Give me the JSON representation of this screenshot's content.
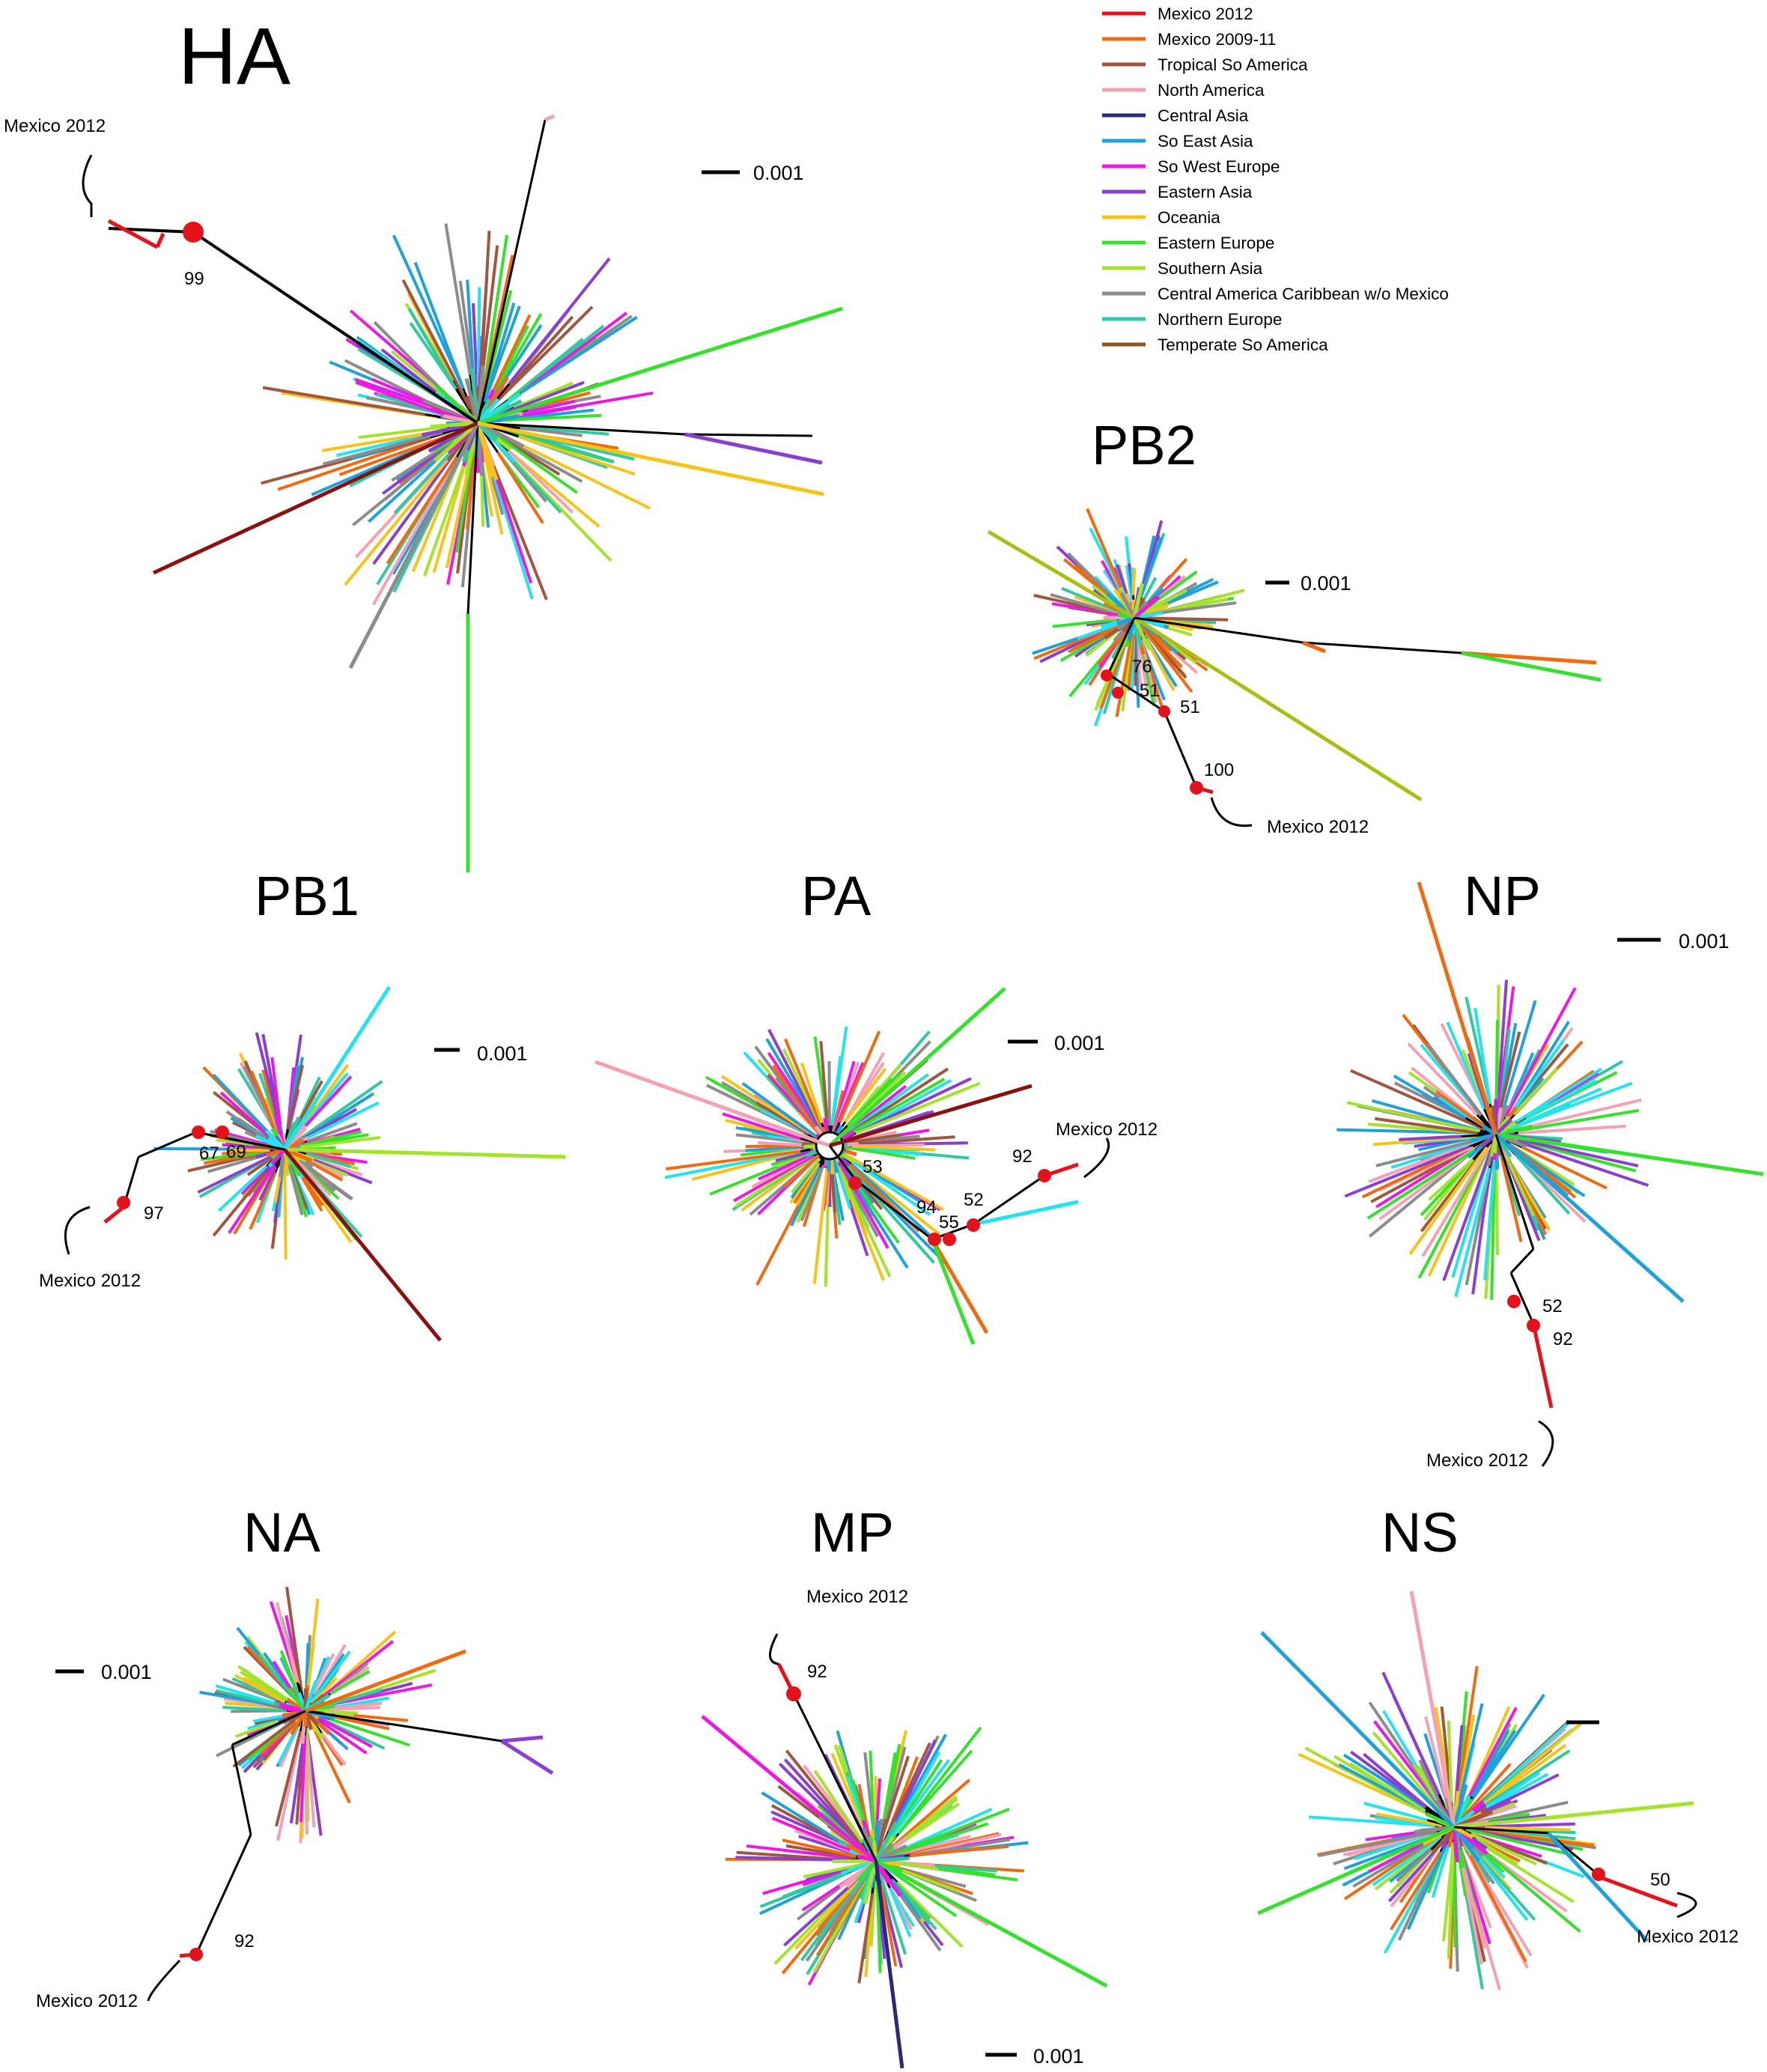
{
  "colors": {
    "Mexico 2012": "#e3121b",
    "Mexico 2009-11": "#f26a10",
    "Tropical So America": "#a0563f",
    "North America": "#f5a0b3",
    "Central Asia": "#2b2a7a",
    "So East Asia": "#1ea2dc",
    "So West Europe": "#ef17e8",
    "Eastern Asia": "#8a3fd0",
    "Oceania": "#f6c417",
    "Eastern Europe": "#36e12e",
    "Southern Asia": "#a3e32a",
    "Central America Caribbean w/o Mexico": "#8c8c8c",
    "Northern Europe": "#2fc9a2",
    "Temperate So America": "#8f5320",
    "cyan": "#22e3ee",
    "blue": "#2240e0",
    "darkred": "#8b1010",
    "olive": "#a9c012",
    "node": "#e3121b"
  },
  "legend": {
    "items": [
      "Mexico 2012",
      "Mexico 2009-11",
      "Tropical So America",
      "North America",
      "Central Asia",
      "So East Asia",
      "So West Europe",
      "Eastern Asia",
      "Oceania",
      "Eastern Europe",
      "Southern Asia",
      "Central America Caribbean w/o Mexico",
      "Northern Europe",
      "Temperate So America"
    ]
  },
  "scale_label": "0.001",
  "panels": [
    {
      "name": "ha",
      "title": "HA",
      "highlight": "Mexico 2012",
      "bootstraps": [
        "99"
      ],
      "scale": "0.001"
    },
    {
      "name": "pb2",
      "title": "PB2",
      "highlight": "Mexico 2012",
      "bootstraps": [
        "76",
        "51",
        "51",
        "100"
      ],
      "scale": "0.001"
    },
    {
      "name": "pb1",
      "title": "PB1",
      "highlight": "Mexico 2012",
      "bootstraps": [
        "67",
        "69",
        "97"
      ],
      "scale": "0.001"
    },
    {
      "name": "pa",
      "title": "PA",
      "highlight": "Mexico 2012",
      "bootstraps": [
        "53",
        "92",
        "94",
        "55",
        "52"
      ],
      "scale": "0.001"
    },
    {
      "name": "np",
      "title": "NP",
      "highlight": "Mexico 2012",
      "bootstraps": [
        "52",
        "92"
      ],
      "scale": "0.001"
    },
    {
      "name": "na",
      "title": "NA",
      "highlight": "Mexico 2012",
      "bootstraps": [
        "92"
      ],
      "scale": "0.001"
    },
    {
      "name": "mp",
      "title": "MP",
      "highlight": "Mexico 2012",
      "bootstraps": [
        "92"
      ],
      "scale": "0.001"
    },
    {
      "name": "ns",
      "title": "NS",
      "highlight": "Mexico 2012",
      "bootstraps": [
        "50"
      ],
      "scale": ""
    }
  ]
}
